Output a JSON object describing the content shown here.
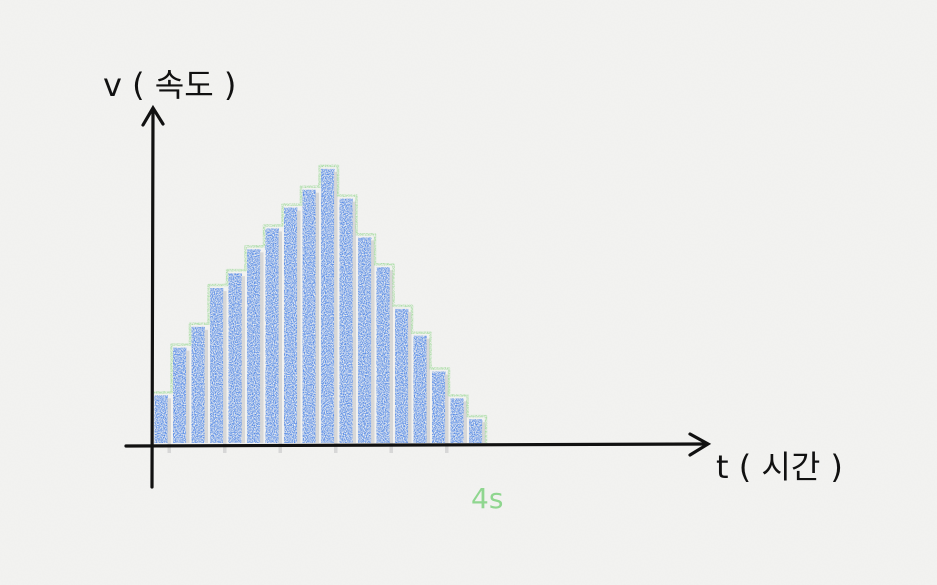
{
  "chart_data": {
    "type": "bar",
    "ylabel": "v ( 속도 )",
    "xlabel": "t ( 시간 )",
    "end_label": "4s",
    "x_end": 4,
    "bar_count": 18,
    "values": [
      0.17,
      0.33,
      0.4,
      0.53,
      0.58,
      0.66,
      0.73,
      0.8,
      0.86,
      0.93,
      0.83,
      0.7,
      0.6,
      0.46,
      0.37,
      0.25,
      0.16,
      0.09
    ],
    "ylim": [
      0,
      1
    ],
    "xlim": [
      0,
      4
    ],
    "colors": {
      "fill": "#4f86e6",
      "outline": "#a7dca2",
      "gap": "#d2d2d2",
      "axis": "#111111"
    }
  }
}
